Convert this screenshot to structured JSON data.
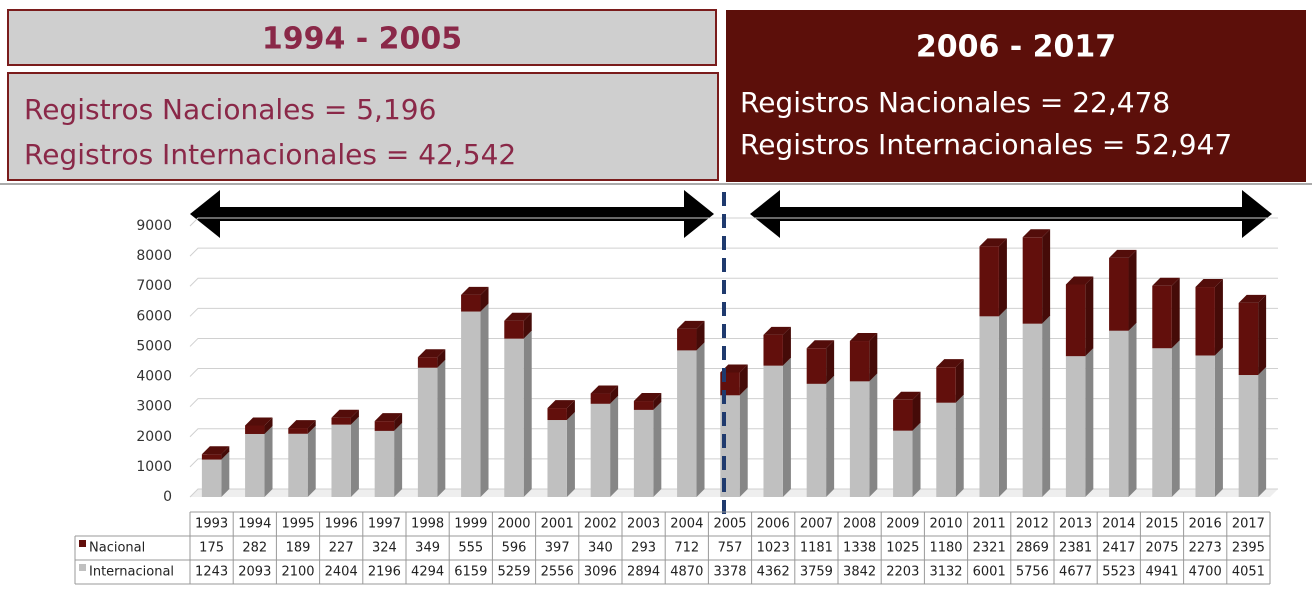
{
  "panels": [
    {
      "title": "1994 - 2005",
      "lines": [
        "Registros Nacionales = 5,196",
        "Registros Internacionales =  42,542"
      ]
    },
    {
      "title": "2006 - 2017",
      "lines": [
        "Registros Nacionales = 22,478",
        "Registros Internacionales =  52,947"
      ]
    }
  ],
  "chart_data": {
    "type": "bar",
    "stacked": true,
    "categories": [
      "1993",
      "1994",
      "1995",
      "1996",
      "1997",
      "1998",
      "1999",
      "2000",
      "2001",
      "2002",
      "2003",
      "2004",
      "2005",
      "2006",
      "2007",
      "2008",
      "2009",
      "2010",
      "2011",
      "2012",
      "2013",
      "2014",
      "2015",
      "2016",
      "2017"
    ],
    "series": [
      {
        "name": "Nacional",
        "color": "#620f0c",
        "values": [
          175,
          282,
          189,
          227,
          324,
          349,
          555,
          596,
          397,
          340,
          293,
          712,
          757,
          1023,
          1181,
          1338,
          1025,
          1180,
          2321,
          2869,
          2381,
          2417,
          2075,
          2273,
          2395
        ]
      },
      {
        "name": "Internacional",
        "color": "#c0c0c0",
        "values": [
          1243,
          2093,
          2100,
          2404,
          2196,
          4294,
          6159,
          5259,
          2556,
          3096,
          2894,
          4870,
          3378,
          4362,
          3759,
          3842,
          2203,
          3132,
          6001,
          5756,
          4677,
          5523,
          4941,
          4700,
          4051
        ]
      }
    ],
    "ylim": [
      0,
      9000
    ],
    "yticks": [
      0,
      1000,
      2000,
      3000,
      4000,
      5000,
      6000,
      7000,
      8000,
      9000
    ],
    "grid": true
  }
}
